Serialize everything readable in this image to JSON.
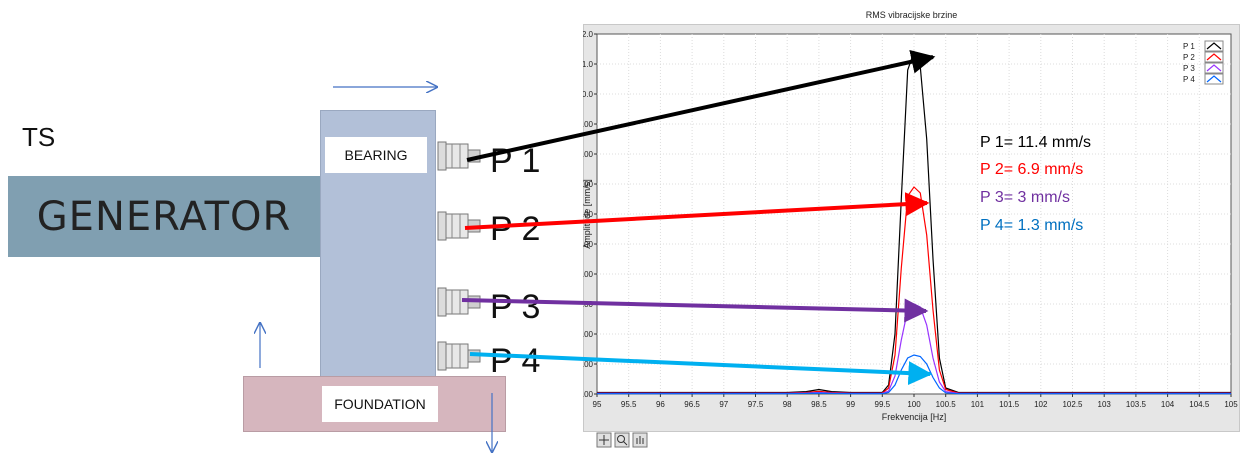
{
  "diagram": {
    "ts_label": "TS",
    "generator_label": "GENERATOR",
    "bearing_label": "BEARING",
    "foundation_label": "FOUNDATION",
    "sensors": [
      {
        "label": "P 1"
      },
      {
        "label": "P 2"
      },
      {
        "label": "P 3"
      },
      {
        "label": "P 4"
      }
    ],
    "colors": {
      "generator": "#809fb1",
      "bearing": "#b2c0d8",
      "foundation": "#d6b6be",
      "arrow_blue": "#4472c4"
    }
  },
  "annotations": [
    {
      "text": "P 1= 11.4 mm/s",
      "color": "#000000"
    },
    {
      "text": "P 2= 6.9 mm/s",
      "color": "#ff0000"
    },
    {
      "text": "P 3= 3 mm/s",
      "color": "#7030a0"
    },
    {
      "text": "P 4= 1.3 mm/s",
      "color": "#0070c0"
    }
  ],
  "chart_data": {
    "type": "line",
    "title": "RMS vibracijske brzine",
    "xlabel": "Frekvencija [Hz]",
    "ylabel": "Amplitude [mm/s]",
    "xlim": [
      95,
      105
    ],
    "ylim": [
      0,
      12
    ],
    "xticks": [
      "95",
      "95.5",
      "96",
      "96.5",
      "97",
      "97.5",
      "98",
      "98.5",
      "99",
      "99.5",
      "100",
      "100.5",
      "101",
      "101.5",
      "102",
      "102.5",
      "103",
      "103.5",
      "104",
      "104.5",
      "105"
    ],
    "yticks": [
      "0.00",
      "1.00",
      "2.00",
      "3.00",
      "4.00",
      "5.00",
      "6.00",
      "7.00",
      "8.00",
      "9.00",
      "10.0",
      "11.0",
      "12.0"
    ],
    "grid": true,
    "legend_position": "top-right",
    "x": [
      95.0,
      95.5,
      96.0,
      96.5,
      97.0,
      97.5,
      98.0,
      98.3,
      98.5,
      98.7,
      99.0,
      99.3,
      99.5,
      99.6,
      99.7,
      99.8,
      99.9,
      100.0,
      100.1,
      100.2,
      100.3,
      100.4,
      100.5,
      100.7,
      101.0,
      101.5,
      102.0,
      102.5,
      103.0,
      103.5,
      104.0,
      104.5,
      105.0
    ],
    "series": [
      {
        "name": "P 1",
        "color": "#000000",
        "values": [
          0.05,
          0.05,
          0.05,
          0.05,
          0.05,
          0.05,
          0.05,
          0.08,
          0.15,
          0.08,
          0.05,
          0.05,
          0.05,
          0.3,
          2.0,
          6.5,
          10.8,
          11.4,
          10.9,
          8.5,
          4.5,
          1.2,
          0.2,
          0.05,
          0.05,
          0.05,
          0.05,
          0.05,
          0.05,
          0.05,
          0.05,
          0.05,
          0.05
        ]
      },
      {
        "name": "P 2",
        "color": "#ff0000",
        "values": [
          0.03,
          0.03,
          0.03,
          0.03,
          0.03,
          0.03,
          0.03,
          0.05,
          0.09,
          0.05,
          0.03,
          0.03,
          0.03,
          0.2,
          1.3,
          4.2,
          6.6,
          6.9,
          6.7,
          5.3,
          2.8,
          0.8,
          0.15,
          0.03,
          0.03,
          0.03,
          0.03,
          0.03,
          0.03,
          0.03,
          0.03,
          0.03,
          0.03
        ]
      },
      {
        "name": "P 3",
        "color": "#9933ff",
        "values": [
          0.02,
          0.02,
          0.02,
          0.02,
          0.02,
          0.02,
          0.02,
          0.03,
          0.05,
          0.03,
          0.02,
          0.02,
          0.02,
          0.1,
          0.6,
          1.8,
          2.8,
          3.0,
          2.9,
          2.3,
          1.2,
          0.4,
          0.08,
          0.02,
          0.02,
          0.02,
          0.02,
          0.02,
          0.02,
          0.02,
          0.02,
          0.02,
          0.02
        ]
      },
      {
        "name": "P 4",
        "color": "#0066ff",
        "values": [
          0.01,
          0.01,
          0.01,
          0.01,
          0.01,
          0.01,
          0.01,
          0.02,
          0.03,
          0.02,
          0.01,
          0.01,
          0.01,
          0.05,
          0.3,
          0.8,
          1.2,
          1.3,
          1.25,
          1.0,
          0.55,
          0.2,
          0.04,
          0.01,
          0.01,
          0.01,
          0.01,
          0.01,
          0.01,
          0.01,
          0.01,
          0.01,
          0.01
        ]
      }
    ]
  }
}
